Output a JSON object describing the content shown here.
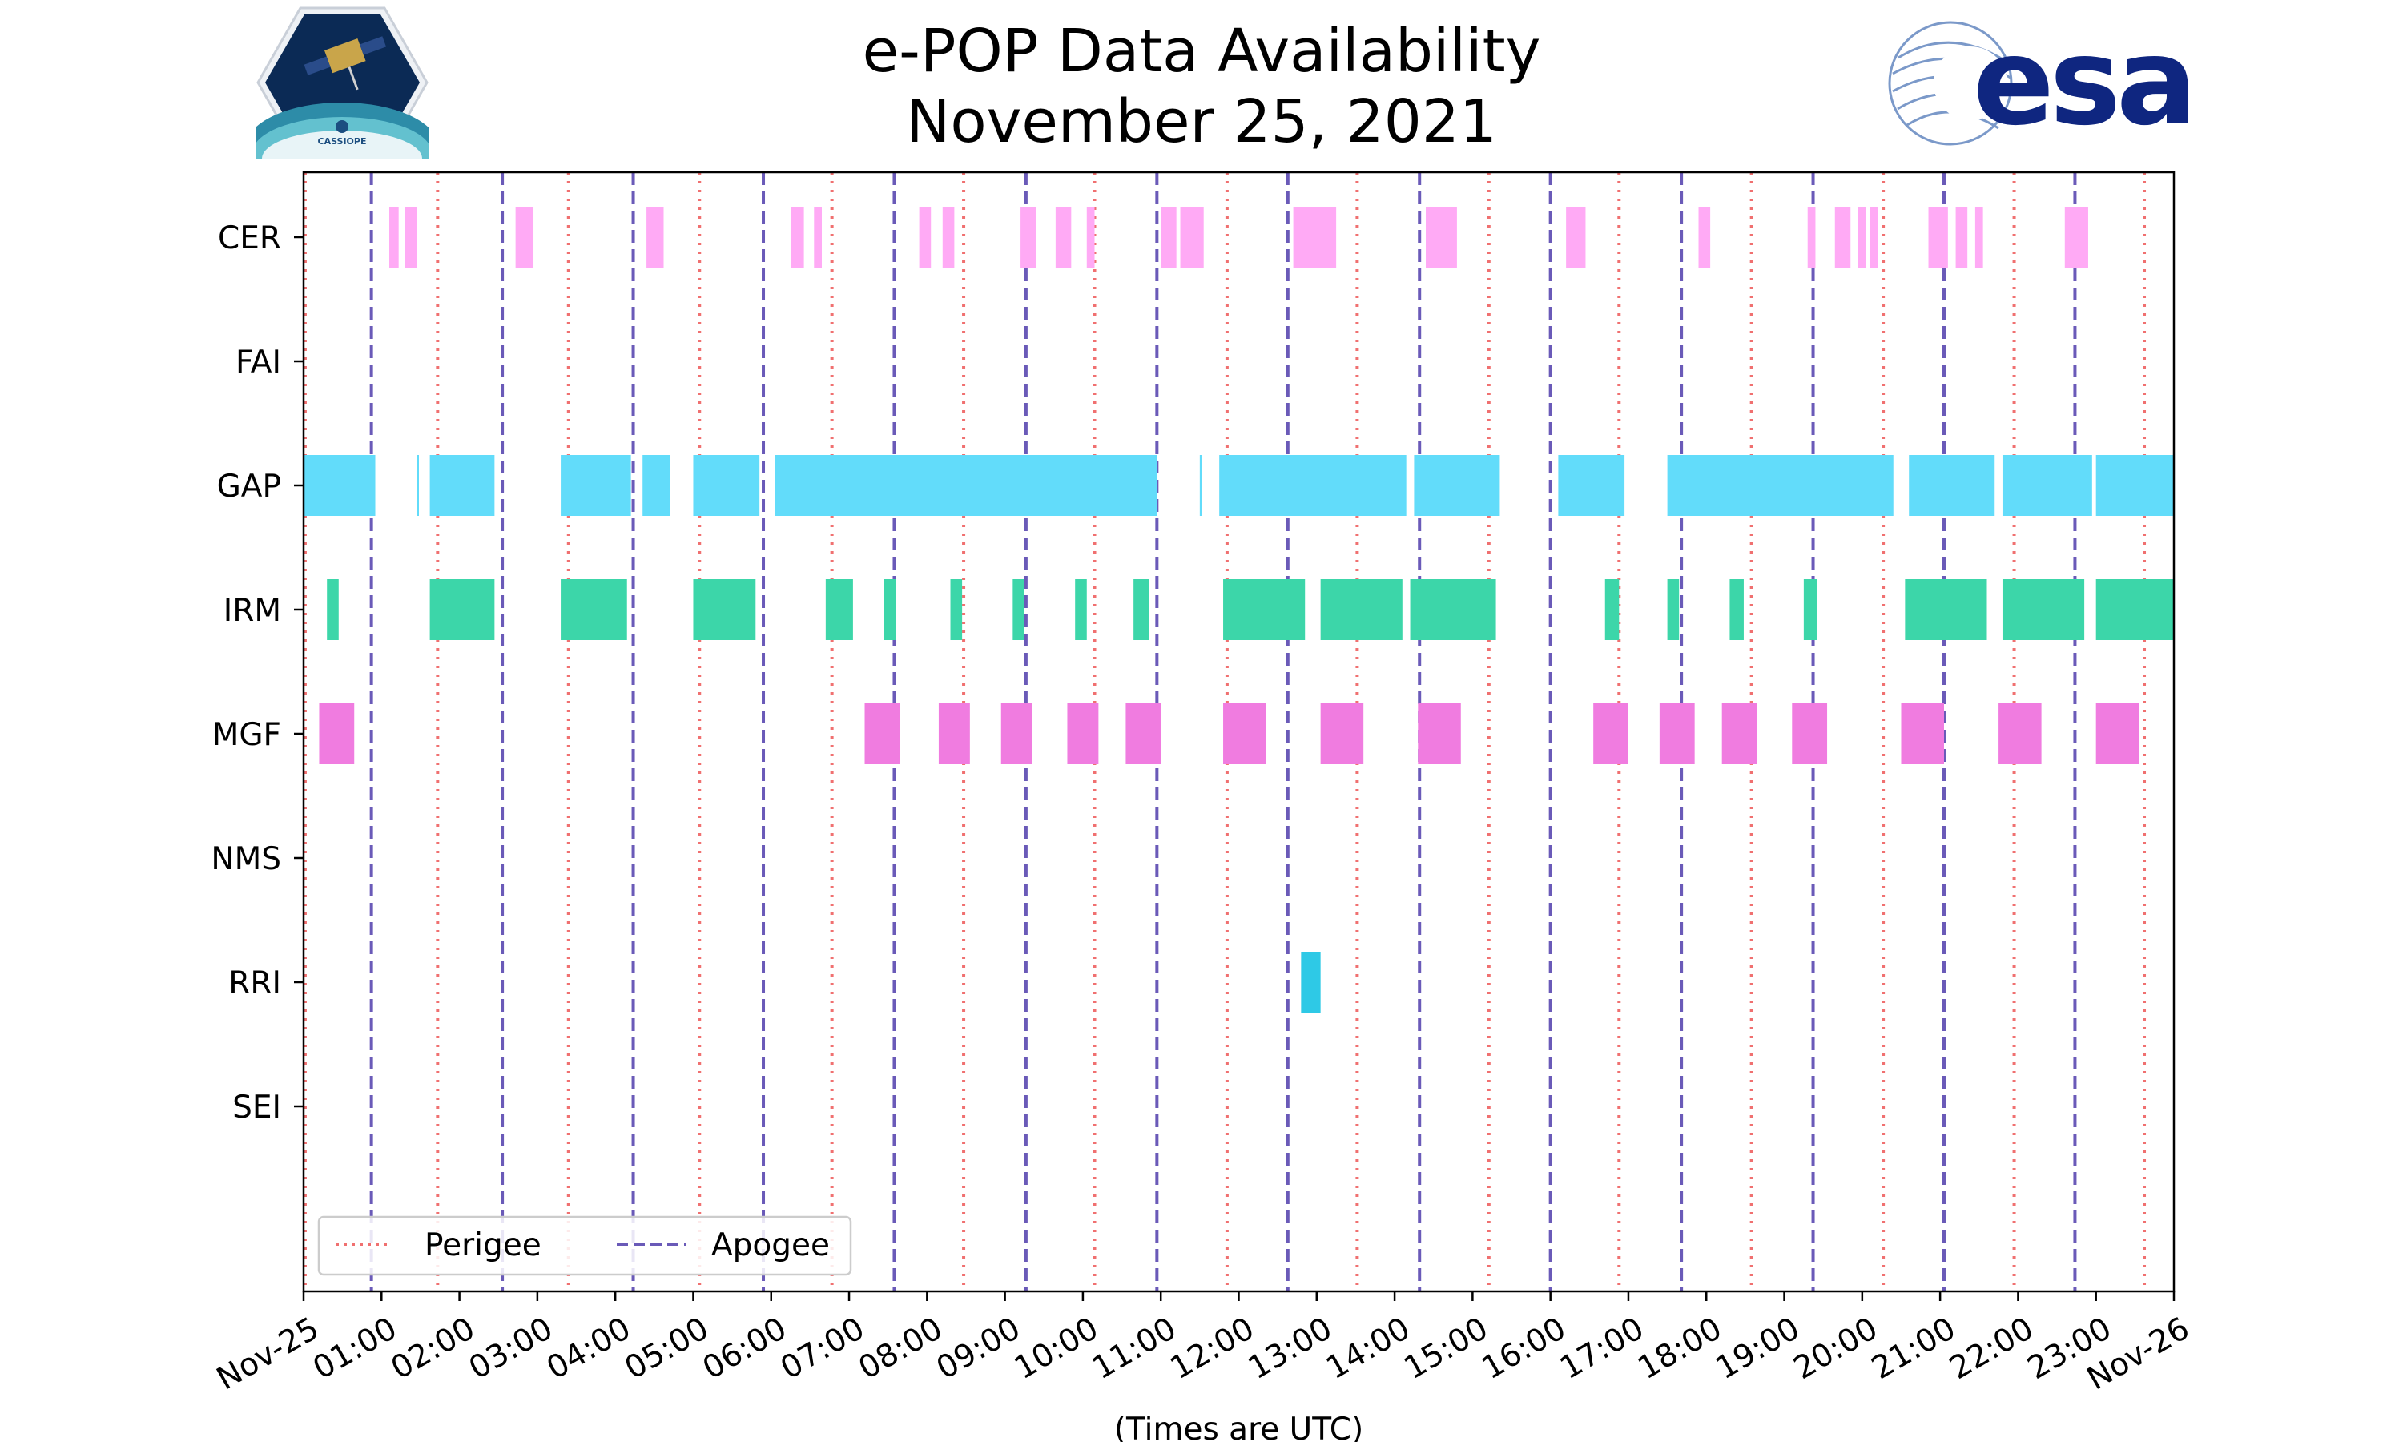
{
  "chart_data": {
    "type": "timeline",
    "title": [
      "e-POP Data Availability",
      "November 25, 2021"
    ],
    "xlabel": "(Times are UTC)",
    "x_range_hours": [
      0,
      24
    ],
    "x_ticks": [
      "Nov-25",
      "01:00",
      "02:00",
      "03:00",
      "04:00",
      "05:00",
      "06:00",
      "07:00",
      "08:00",
      "09:00",
      "10:00",
      "11:00",
      "12:00",
      "13:00",
      "14:00",
      "15:00",
      "16:00",
      "17:00",
      "18:00",
      "19:00",
      "20:00",
      "21:00",
      "22:00",
      "23:00",
      "Nov-26"
    ],
    "instruments": [
      "CER",
      "FAI",
      "GAP",
      "IRM",
      "MGF",
      "NMS",
      "RRI",
      "SEI"
    ],
    "colors": {
      "CER": "#ffaaf5",
      "FAI": "#cccccc",
      "GAP": "#62dcfa",
      "IRM": "#3cd6a9",
      "MGF": "#f07ce0",
      "NMS": "#999999",
      "RRI": "#2ec9e6",
      "SEI": "#999999",
      "perigee": "#f07070",
      "apogee": "#6a5ab8"
    },
    "intervals": {
      "CER": [
        [
          1.1,
          1.22
        ],
        [
          1.3,
          1.45
        ],
        [
          2.72,
          2.95
        ],
        [
          4.4,
          4.62
        ],
        [
          6.25,
          6.42
        ],
        [
          6.55,
          6.65
        ],
        [
          7.9,
          8.05
        ],
        [
          8.2,
          8.35
        ],
        [
          9.2,
          9.4
        ],
        [
          9.65,
          9.85
        ],
        [
          10.05,
          10.15
        ],
        [
          11.0,
          11.2
        ],
        [
          11.25,
          11.55
        ],
        [
          12.7,
          13.25
        ],
        [
          14.4,
          14.8
        ],
        [
          16.2,
          16.45
        ],
        [
          17.9,
          18.05
        ],
        [
          19.3,
          19.4
        ],
        [
          19.65,
          19.85
        ],
        [
          19.95,
          20.05
        ],
        [
          20.1,
          20.2
        ],
        [
          20.85,
          21.1
        ],
        [
          21.2,
          21.35
        ],
        [
          21.45,
          21.55
        ],
        [
          22.6,
          22.9
        ]
      ],
      "FAI": [],
      "GAP": [
        [
          0,
          0.92
        ],
        [
          1.45,
          1.48
        ],
        [
          1.62,
          2.45
        ],
        [
          3.3,
          4.2
        ],
        [
          4.35,
          4.7
        ],
        [
          5.0,
          5.85
        ],
        [
          6.05,
          10.95
        ],
        [
          11.5,
          11.53
        ],
        [
          11.75,
          14.15
        ],
        [
          14.25,
          15.35
        ],
        [
          16.1,
          16.95
        ],
        [
          17.5,
          20.4
        ],
        [
          20.6,
          21.7
        ],
        [
          21.8,
          22.95
        ],
        [
          23.0,
          24.0
        ]
      ],
      "IRM": [
        [
          0.3,
          0.45
        ],
        [
          1.62,
          2.45
        ],
        [
          3.3,
          4.15
        ],
        [
          5.0,
          5.8
        ],
        [
          6.7,
          7.05
        ],
        [
          7.45,
          7.6
        ],
        [
          8.3,
          8.45
        ],
        [
          9.1,
          9.25
        ],
        [
          9.9,
          10.05
        ],
        [
          10.65,
          10.85
        ],
        [
          11.8,
          12.85
        ],
        [
          13.05,
          14.1
        ],
        [
          14.2,
          15.3
        ],
        [
          16.7,
          16.88
        ],
        [
          17.5,
          17.65
        ],
        [
          18.3,
          18.48
        ],
        [
          19.25,
          19.42
        ],
        [
          20.55,
          21.6
        ],
        [
          21.8,
          22.85
        ],
        [
          23.0,
          24.0
        ]
      ],
      "MGF": [
        [
          0.2,
          0.65
        ],
        [
          7.2,
          7.65
        ],
        [
          8.15,
          8.55
        ],
        [
          8.95,
          9.35
        ],
        [
          9.8,
          10.2
        ],
        [
          10.55,
          11.0
        ],
        [
          11.8,
          12.35
        ],
        [
          13.05,
          13.6
        ],
        [
          14.3,
          14.85
        ],
        [
          16.55,
          17.0
        ],
        [
          17.4,
          17.85
        ],
        [
          18.2,
          18.65
        ],
        [
          19.1,
          19.55
        ],
        [
          20.5,
          21.05
        ],
        [
          21.75,
          22.3
        ],
        [
          23.0,
          23.55
        ]
      ],
      "NMS": [],
      "RRI": [
        [
          12.8,
          13.05
        ]
      ],
      "SEI": []
    },
    "perigee_hours": [
      0.02,
      1.72,
      3.4,
      5.08,
      6.78,
      8.47,
      10.15,
      11.85,
      13.52,
      15.21,
      16.88,
      18.58,
      20.27,
      21.95,
      23.62
    ],
    "apogee_hours": [
      0.87,
      2.55,
      4.23,
      5.9,
      7.58,
      9.27,
      10.95,
      12.63,
      14.32,
      16.0,
      17.68,
      19.37,
      21.05,
      22.73
    ],
    "legend": [
      {
        "label": "Perigee",
        "style": "dotted"
      },
      {
        "label": "Apogee",
        "style": "dashed"
      }
    ]
  },
  "logos": {
    "cassiope_text": "CASSIOPE",
    "esa_text": "esa"
  }
}
